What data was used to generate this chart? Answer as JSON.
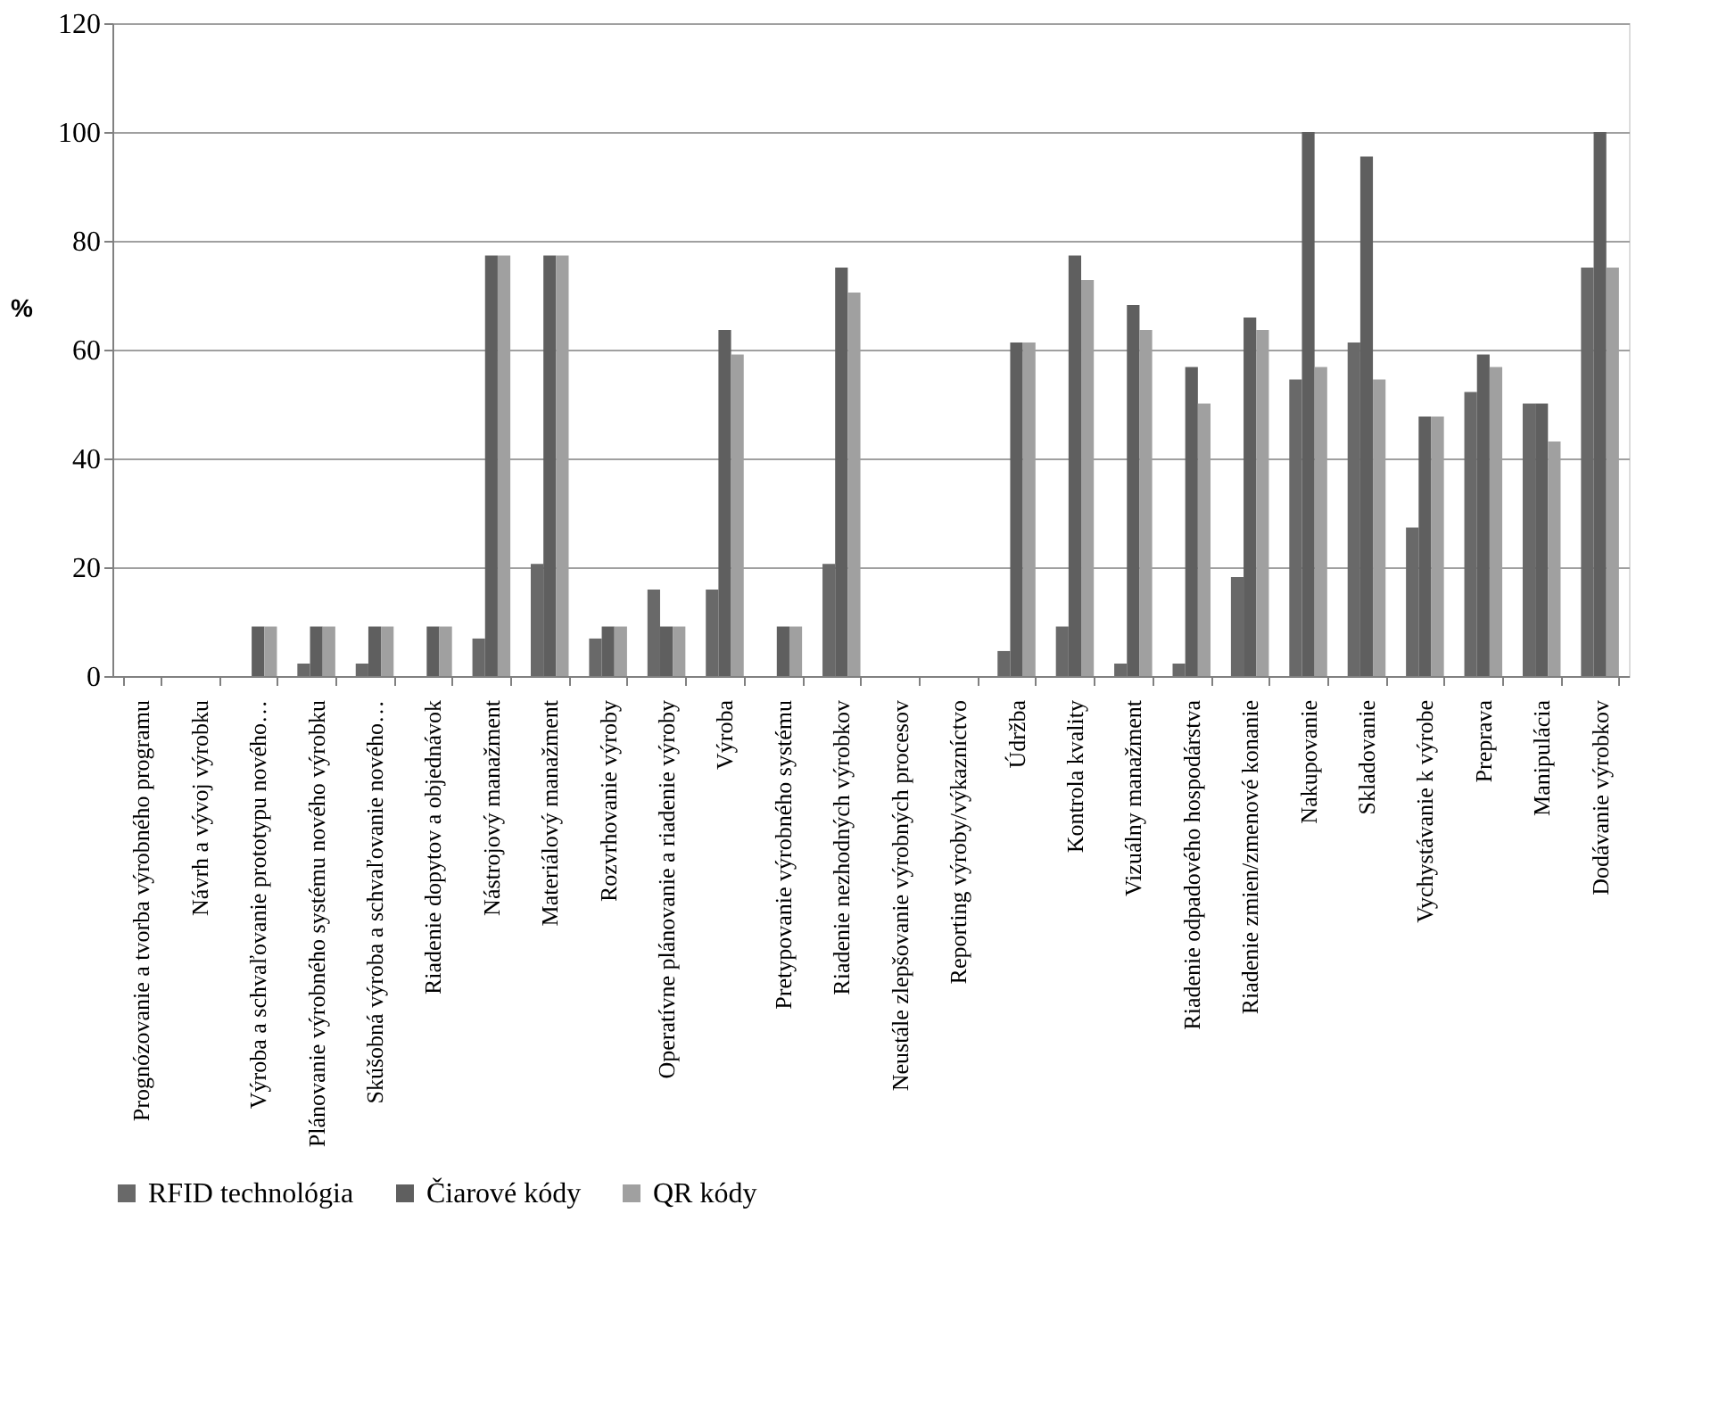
{
  "chart_data": {
    "type": "bar",
    "ylabel": "%",
    "categories": [
      "Prognózovanie a tvorba výrobného programu",
      "Návrh a vývoj výrobku",
      "Výroba a schvaľovanie prototypu nového…",
      "Plánovanie výrobného systému nového výrobku",
      "Skúšobná výroba a schvaľovanie nového…",
      "Riadenie dopytov a objednávok",
      "Nástrojový manažment",
      "Materiálový manažment",
      "Rozvrhovanie výroby",
      "Operatívne plánovanie a riadenie výroby",
      "Výroba",
      "Pretypovanie výrobného systému",
      "Riadenie nezhodných výrobkov",
      "Neustále zlepšovanie výrobných procesov",
      "Reporting výroby/výkazníctvo",
      "Údržba",
      "Kontrola kvality",
      "Vizuálny manažment",
      "Riadenie odpadového hospodárstva",
      "Riadenie zmien/zmenové konanie",
      "Nakupovanie",
      "Skladovanie",
      "Vychystávanie k výrobe",
      "Preprava",
      "Manipulácia",
      "Dodávanie výrobkov"
    ],
    "series": [
      {
        "name": "RFID technológia",
        "color": "#696969",
        "values": [
          0,
          0,
          0,
          2.3,
          2.3,
          0,
          6.9,
          20.6,
          6.9,
          15.9,
          15.9,
          0,
          20.6,
          0,
          0,
          4.6,
          9.1,
          2.3,
          2.3,
          18.2,
          54.5,
          61.3,
          27.3,
          52.2,
          50.1,
          75.1
        ]
      },
      {
        "name": "Čiarové kódy",
        "color": "#5f5f5f",
        "values": [
          0,
          0,
          9.1,
          9.1,
          9.1,
          9.1,
          77.3,
          77.3,
          9.1,
          9.1,
          63.6,
          9.1,
          75.1,
          0,
          0,
          61.3,
          77.3,
          68.2,
          56.8,
          65.9,
          100,
          95.5,
          47.7,
          59.1,
          50.1,
          100
        ]
      },
      {
        "name": "QR kódy",
        "color": "#a0a0a0",
        "values": [
          0,
          0,
          9.1,
          9.1,
          9.1,
          9.1,
          77.3,
          77.3,
          9.1,
          9.1,
          59.1,
          9.1,
          70.5,
          0,
          0,
          61.3,
          72.8,
          63.6,
          50.1,
          63.6,
          56.8,
          54.5,
          47.7,
          56.8,
          43.1,
          75.1
        ]
      }
    ],
    "ylim": [
      0,
      120
    ],
    "yticks": [
      0,
      20,
      40,
      60,
      80,
      100,
      120
    ],
    "grid": "y",
    "legend": "bottom"
  }
}
